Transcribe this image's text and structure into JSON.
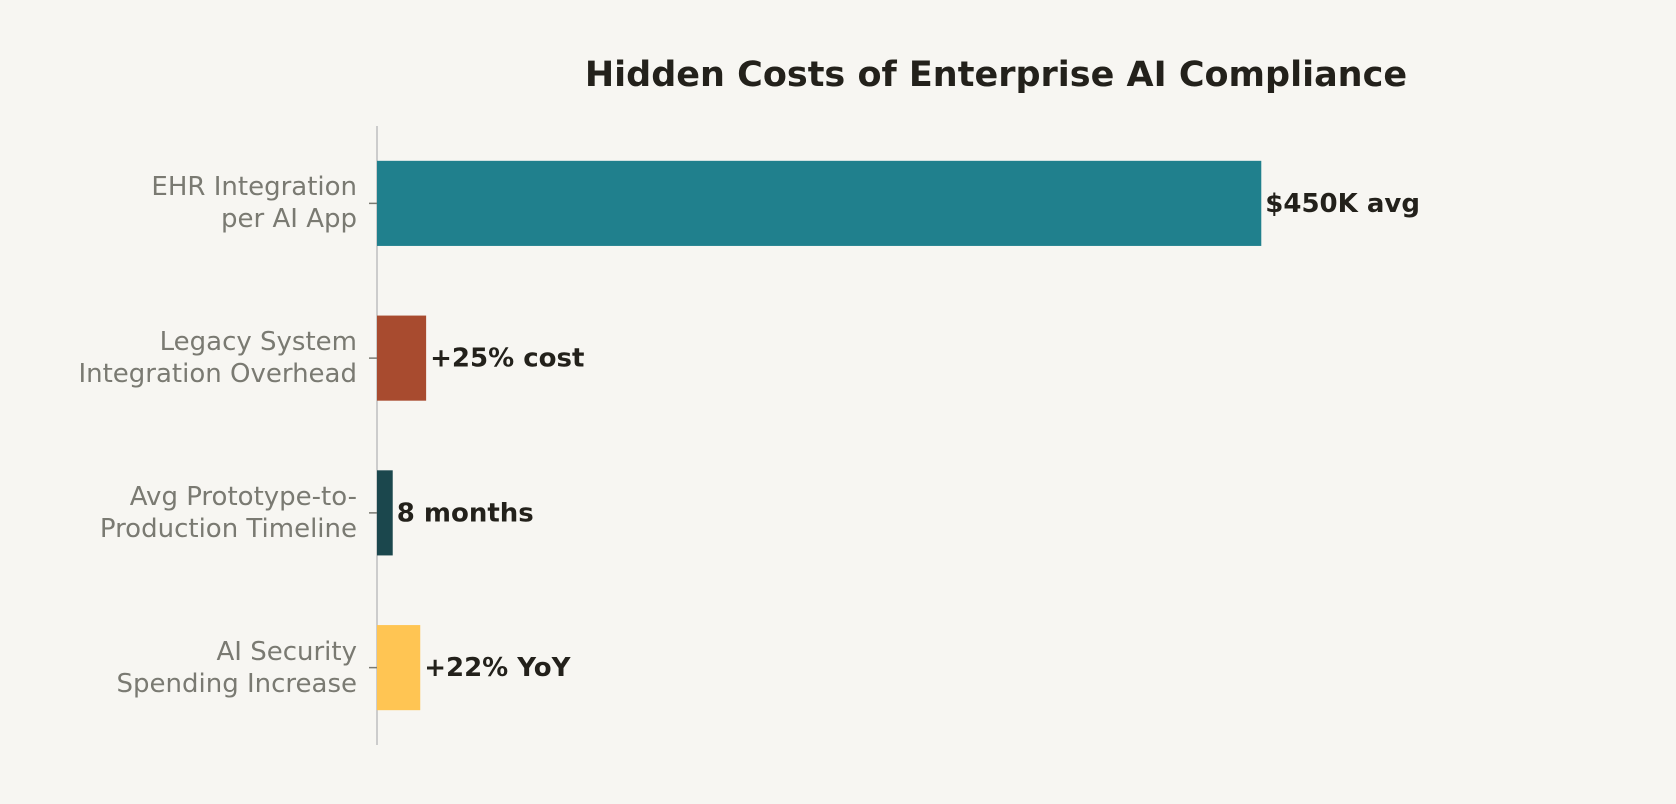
{
  "chart_data": {
    "type": "barh",
    "title": "Hidden Costs of Enterprise AI Compliance",
    "categories": [
      "EHR Integration\nper AI App",
      "Legacy System\nIntegration Overhead",
      "Avg Prototype-to-\nProduction Timeline",
      "AI Security\nSpending Increase"
    ],
    "values": [
      450,
      25,
      8,
      22
    ],
    "value_labels": [
      "$450K avg",
      "+25% cost",
      "8 months",
      "+22% YoY"
    ],
    "colors": [
      "#20808D",
      "#A84B2F",
      "#1B474D",
      "#FFC553"
    ],
    "xlim": [
      0,
      630
    ]
  }
}
